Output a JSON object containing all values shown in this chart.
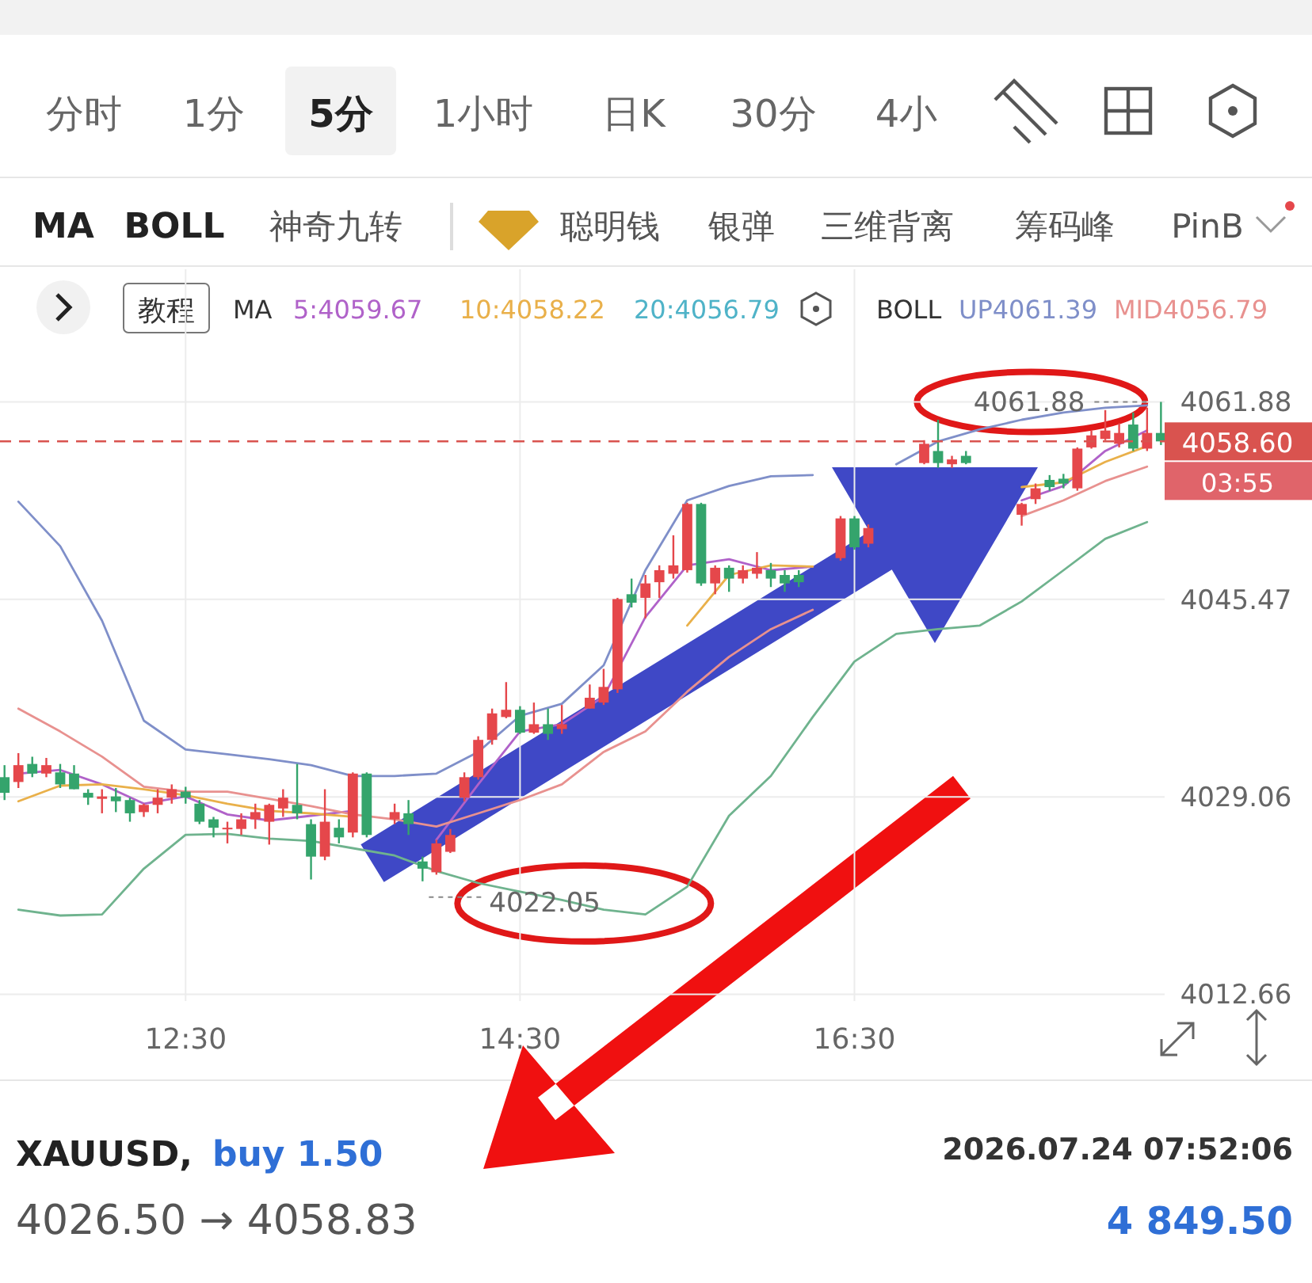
{
  "chart_data": {
    "type": "candlestick",
    "x": [
      11.417,
      11.5,
      11.583,
      11.667,
      11.75,
      11.833,
      11.917,
      12.0,
      12.083,
      12.167,
      12.25,
      12.333,
      12.417,
      12.5,
      12.583,
      12.667,
      12.75,
      12.833,
      12.917,
      13.0,
      13.083,
      13.167,
      13.25,
      13.333,
      13.417,
      13.5,
      13.583,
      13.75,
      13.833,
      13.917,
      14.0,
      14.083,
      14.167,
      14.25,
      14.333,
      14.417,
      14.5,
      14.583,
      14.667,
      14.75,
      14.917,
      15.0,
      15.083,
      15.167,
      15.25,
      15.333,
      15.417,
      15.5,
      15.583,
      15.667,
      15.75,
      15.833,
      15.917,
      16.0,
      16.083,
      16.167,
      16.417,
      16.5,
      16.583,
      16.917,
      17.0,
      17.083,
      17.167,
      17.5,
      17.583,
      17.667,
      17.75,
      17.833,
      17.917,
      18.0,
      18.083,
      18.167,
      18.25,
      18.333
    ],
    "ohlc": [
      [
        4030.7,
        4031.7,
        4028.8,
        4029.4
      ],
      [
        4030.3,
        4032.7,
        4029.8,
        4031.7
      ],
      [
        4031.8,
        4032.4,
        4030.7,
        4031.0
      ],
      [
        4031.0,
        4032.3,
        4030.7,
        4031.7
      ],
      [
        4031.1,
        4031.8,
        4029.8,
        4030.1
      ],
      [
        4031.0,
        4031.7,
        4029.7,
        4029.7
      ],
      [
        4029.4,
        4029.7,
        4028.4,
        4029.0
      ],
      [
        4028.9,
        4029.7,
        4027.7,
        4029.1
      ],
      [
        4029.1,
        4029.8,
        4027.8,
        4028.7
      ],
      [
        4028.8,
        4029.0,
        4027.0,
        4027.7
      ],
      [
        4027.8,
        4028.5,
        4027.4,
        4028.4
      ],
      [
        4028.4,
        4029.7,
        4027.7,
        4029.0
      ],
      [
        4029.0,
        4030.1,
        4028.5,
        4029.7
      ],
      [
        4029.5,
        4029.9,
        4028.5,
        4029.0
      ],
      [
        4028.5,
        4028.8,
        4026.8,
        4027.0
      ],
      [
        4027.2,
        4027.4,
        4025.7,
        4026.5
      ],
      [
        4026.4,
        4027.0,
        4025.2,
        4026.5
      ],
      [
        4026.4,
        4027.7,
        4025.9,
        4027.2
      ],
      [
        4027.2,
        4028.5,
        4026.4,
        4027.8
      ],
      [
        4027.0,
        4028.5,
        4025.1,
        4028.4
      ],
      [
        4028.1,
        4029.7,
        4027.4,
        4029.0
      ],
      [
        4028.4,
        4031.8,
        4027.2,
        4027.7
      ],
      [
        4026.8,
        4027.2,
        4022.2,
        4024.1
      ],
      [
        4024.1,
        4029.7,
        4023.8,
        4027.0
      ],
      [
        4026.5,
        4027.2,
        4025.2,
        4025.7
      ],
      [
        4026.1,
        4031.1,
        4025.7,
        4031.0
      ],
      [
        4031.0,
        4031.1,
        4025.7,
        4025.9
      ],
      [
        4027.2,
        4028.5,
        4026.8,
        4027.8
      ],
      [
        4027.7,
        4028.8,
        4025.9,
        4026.8
      ],
      [
        4023.7,
        4024.1,
        4022.05,
        4023.1
      ],
      [
        4022.8,
        4025.5,
        4022.6,
        4025.2
      ],
      [
        4024.5,
        4026.4,
        4024.4,
        4025.9
      ],
      [
        4029.0,
        4031.1,
        4028.7,
        4030.7
      ],
      [
        4030.7,
        4034.1,
        4030.5,
        4033.8
      ],
      [
        4033.8,
        4036.4,
        4033.4,
        4036.0
      ],
      [
        4035.7,
        4038.6,
        4035.6,
        4036.3
      ],
      [
        4036.3,
        4036.6,
        4034.3,
        4034.4
      ],
      [
        4034.4,
        4036.9,
        4034.3,
        4035.1
      ],
      [
        4035.1,
        4036.4,
        4033.8,
        4034.3
      ],
      [
        4034.7,
        4036.7,
        4034.3,
        4035.1
      ],
      [
        4036.4,
        4038.4,
        4036.4,
        4037.3
      ],
      [
        4036.9,
        4039.7,
        4036.7,
        4038.2
      ],
      [
        4038.0,
        4045.6,
        4037.7,
        4045.5
      ],
      [
        4045.9,
        4047.2,
        4044.8,
        4045.2
      ],
      [
        4045.6,
        4047.5,
        4043.9,
        4046.8
      ],
      [
        4046.9,
        4048.3,
        4045.6,
        4047.9
      ],
      [
        4047.6,
        4050.8,
        4047.2,
        4048.3
      ],
      [
        4047.9,
        4053.5,
        4047.7,
        4053.4
      ],
      [
        4053.4,
        4053.5,
        4046.6,
        4046.8
      ],
      [
        4046.8,
        4048.3,
        4045.9,
        4048.1
      ],
      [
        4048.1,
        4048.3,
        4046.1,
        4047.2
      ],
      [
        4047.2,
        4048.3,
        4046.8,
        4047.9
      ],
      [
        4047.6,
        4049.4,
        4047.2,
        4048.1
      ],
      [
        4047.9,
        4048.5,
        4046.5,
        4047.2
      ],
      [
        4047.5,
        4047.9,
        4046.1,
        4046.8
      ],
      [
        4047.5,
        4047.9,
        4046.5,
        4046.9
      ],
      [
        4048.9,
        4052.4,
        4048.7,
        4052.2
      ],
      [
        4052.2,
        4052.4,
        4049.6,
        4049.8
      ],
      [
        4050.1,
        4051.7,
        4049.8,
        4051.4
      ],
      [
        4056.8,
        4058.7,
        4056.7,
        4058.4
      ],
      [
        4057.8,
        4060.4,
        4056.4,
        4056.8
      ],
      [
        4056.7,
        4057.4,
        4056.4,
        4057.1
      ],
      [
        4057.4,
        4057.8,
        4056.7,
        4056.8
      ],
      [
        4052.5,
        4053.5,
        4051.6,
        4053.4
      ],
      [
        4053.8,
        4055.1,
        4053.4,
        4054.7
      ],
      [
        4055.4,
        4055.8,
        4054.5,
        4054.8
      ],
      [
        4055.5,
        4055.9,
        4054.7,
        4055.1
      ],
      [
        4054.7,
        4058.1,
        4054.5,
        4058.0
      ],
      [
        4058.1,
        4059.5,
        4058.0,
        4059.1
      ],
      [
        4058.8,
        4061.2,
        4058.7,
        4059.5
      ],
      [
        4058.4,
        4060.1,
        4058.1,
        4059.3
      ],
      [
        4060.0,
        4061.0,
        4057.8,
        4058.0
      ],
      [
        4058.0,
        4061.4,
        4057.8,
        4059.3
      ],
      [
        4059.3,
        4061.88,
        4058.3,
        4058.6
      ]
    ],
    "colors": [
      "#34a46c",
      "#e5474b",
      "#34a46c",
      "#e5474b",
      "#34a46c",
      "#34a46c",
      "#34a46c",
      "#e5474b",
      "#34a46c",
      "#34a46c",
      "#e5474b",
      "#e5474b",
      "#e5474b",
      "#34a46c",
      "#34a46c",
      "#34a46c",
      "#e5474b",
      "#e5474b",
      "#e5474b",
      "#e5474b",
      "#e5474b",
      "#34a46c",
      "#34a46c",
      "#e5474b",
      "#34a46c",
      "#e5474b",
      "#34a46c",
      "#e5474b",
      "#34a46c",
      "#34a46c",
      "#e5474b",
      "#e5474b",
      "#e5474b",
      "#e5474b",
      "#e5474b",
      "#e5474b",
      "#34a46c",
      "#e5474b",
      "#34a46c",
      "#e5474b",
      "#e5474b",
      "#e5474b",
      "#e5474b",
      "#34a46c",
      "#e5474b",
      "#e5474b",
      "#e5474b",
      "#e5474b",
      "#34a46c",
      "#e5474b",
      "#34a46c",
      "#e5474b",
      "#e5474b",
      "#34a46c",
      "#34a46c",
      "#34a46c",
      "#e5474b",
      "#34a46c",
      "#e5474b",
      "#e5474b",
      "#34a46c",
      "#e5474b",
      "#34a46c",
      "#e5474b",
      "#e5474b",
      "#34a46c",
      "#34a46c",
      "#e5474b",
      "#e5474b",
      "#e5474b",
      "#e5474b",
      "#34a46c",
      "#e5474b",
      "#34a46c"
    ],
    "series": [
      {
        "type": "line",
        "name": "5:4059.67",
        "color": "#b062c9",
        "x": [
          11.5,
          11.75,
          12.0,
          12.25,
          12.5,
          12.75,
          13.0,
          13.25,
          13.5,
          13.75,
          14.0,
          14.25,
          14.5,
          14.75,
          15.0,
          15.25,
          15.5,
          15.75,
          16.0,
          16.25,
          16.5,
          16.75,
          17.0,
          17.25,
          17.5,
          17.75,
          18.0,
          18.25
        ],
        "values": [
          4031.0,
          4031.3,
          4030.1,
          4028.5,
          4029.1,
          4027.6,
          4027.1,
          4027.5,
          4027.9,
          null,
          4025.5,
          4030.1,
          4034.5,
          4035.1,
          4037.4,
          4044.0,
          4048.3,
          4048.8,
          4047.9,
          4048.2,
          null,
          null,
          null,
          null,
          4053.7,
          4054.9,
          4057.8,
          4059.5
        ]
      },
      {
        "type": "line",
        "name": "10:4058.22",
        "color": "#e9b04a",
        "x": [
          11.5,
          11.75,
          12.0,
          12.25,
          12.5,
          12.75,
          13.0,
          13.25,
          13.5,
          13.75,
          14.0,
          14.25,
          14.5,
          14.75,
          15.0,
          15.25,
          15.5,
          15.75,
          16.0,
          16.25,
          16.5,
          16.75,
          17.0,
          17.25,
          17.5,
          17.75,
          18.0,
          18.25
        ],
        "values": [
          4028.7,
          4030.0,
          4030.1,
          4029.7,
          4029.2,
          4028.5,
          4027.9,
          4027.7,
          4027.4,
          null,
          null,
          null,
          null,
          null,
          null,
          null,
          4043.3,
          4047.5,
          4048.3,
          4048.2,
          null,
          null,
          null,
          null,
          4054.8,
          4055.2,
          4056.9,
          4058.2
        ]
      },
      {
        "type": "line",
        "name": "UP4061.39",
        "color": "#7f8fc9",
        "x": [
          11.5,
          11.75,
          12.0,
          12.25,
          12.5,
          12.75,
          13.0,
          13.25,
          13.5,
          13.75,
          14.0,
          14.25,
          14.5,
          14.75,
          15.0,
          15.25,
          15.5,
          15.75,
          16.0,
          16.25,
          16.5,
          16.75,
          17.0,
          17.25,
          17.5,
          17.75,
          18.0,
          18.25
        ],
        "values": [
          4053.6,
          4049.9,
          4043.7,
          4035.4,
          4033.0,
          4032.6,
          4032.2,
          4031.7,
          4030.8,
          4030.8,
          4031.0,
          4032.8,
          4035.8,
          4036.8,
          4040.0,
          4047.9,
          4053.7,
          4054.9,
          4055.7,
          4055.8,
          null,
          4056.7,
          4058.6,
          4059.6,
          4060.4,
          4061.0,
          4061.4,
          4061.6
        ]
      },
      {
        "type": "line",
        "name": "MID4056.79",
        "color": "#e8918f",
        "x": [
          11.5,
          11.75,
          12.0,
          12.25,
          12.5,
          12.75,
          13.0,
          13.25,
          13.5,
          13.75,
          14.0,
          14.25,
          14.5,
          14.75,
          15.0,
          15.25,
          15.5,
          15.75,
          16.0,
          16.25,
          16.5,
          16.75,
          17.0,
          17.25,
          17.5,
          17.75,
          18.0,
          18.25
        ],
        "values": [
          4036.4,
          4034.5,
          4032.4,
          4029.9,
          4029.5,
          4029.5,
          4028.9,
          4028.3,
          4027.6,
          4027.2,
          4026.6,
          4027.7,
          4028.8,
          4030.1,
          4032.8,
          4034.5,
          4037.8,
          4040.7,
          4043.0,
          4044.6,
          null,
          null,
          null,
          null,
          4052.4,
          4053.7,
          4055.3,
          4056.5
        ]
      },
      {
        "type": "line",
        "color": "#6fb38e",
        "x": [
          11.5,
          11.75,
          12.0,
          12.25,
          12.5,
          12.75,
          13.0,
          13.25,
          13.5,
          13.75,
          14.0,
          14.25,
          14.5,
          14.75,
          15.0,
          15.25,
          15.5,
          15.75,
          16.0,
          16.25,
          16.5,
          16.75,
          17.0,
          17.25,
          17.5,
          17.75,
          18.0,
          18.25
        ],
        "values": [
          4019.7,
          4019.2,
          4019.3,
          4023.1,
          4025.9,
          4026.0,
          4025.6,
          4025.4,
          4024.8,
          4024.2,
          4022.9,
          4021.9,
          4021.2,
          4020.5,
          4019.7,
          4019.3,
          4021.6,
          4027.5,
          4030.8,
          4035.7,
          4040.3,
          4042.6,
          4043.0,
          4043.3,
          4045.3,
          4047.9,
          4050.5,
          4051.9
        ]
      }
    ],
    "xlim": [
      11.39,
      18.355
    ],
    "ylim": [
      4012.1,
      4072.9
    ],
    "xticks": [
      {
        "value": 12.5,
        "label": "12:30"
      },
      {
        "value": 14.5,
        "label": "14:30"
      },
      {
        "value": 16.5,
        "label": "16:30"
      }
    ],
    "yticks": [
      4061.88,
      4045.47,
      4029.06,
      4012.66
    ],
    "grid": true,
    "legend": "top",
    "ref_lines": [
      {
        "axis": "y",
        "value": 4058.6,
        "label": "4058.60",
        "color": "#d9534f",
        "line_style": "dashed"
      }
    ],
    "annotations": [
      "分时",
      "1分",
      "5分",
      "1小时",
      "日K",
      "30分",
      "4小",
      "MA",
      "BOLL",
      "神奇九转",
      "聪明钱",
      "银弹",
      "三维背离",
      "筹码峰",
      "PinB",
      "教程",
      "MA",
      "20:4056.79",
      "BOLL",
      {
        "text": "4061.88",
        "x": 18.333,
        "y": 4061.88
      },
      {
        "text": "4022.05",
        "x": 13.917,
        "y": 4022.05
      },
      "03:55",
      "XAUUSD,",
      "buy 1.50",
      "2026.07.24 07:52:06",
      "4026.50 → 4058.83",
      "4 849.50"
    ]
  }
}
